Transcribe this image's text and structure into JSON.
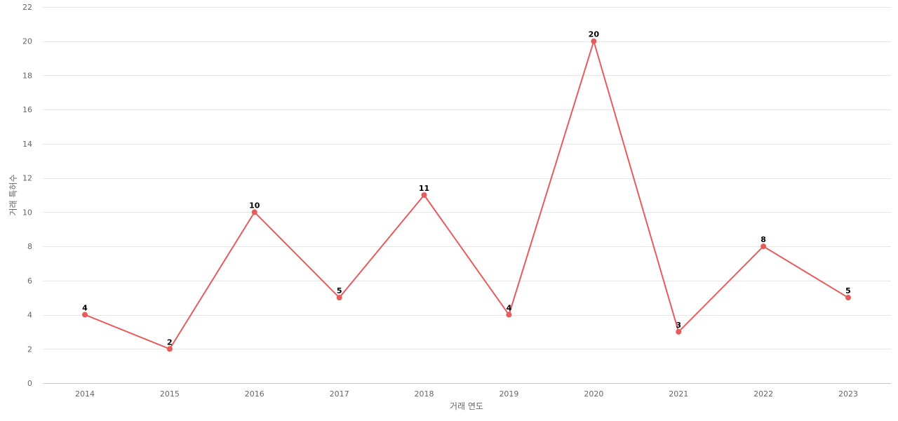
{
  "chart_data": {
    "type": "line",
    "title": "",
    "xlabel": "거래 연도",
    "ylabel": "거래 특허수",
    "x": [
      "2014",
      "2015",
      "2016",
      "2017",
      "2018",
      "2019",
      "2020",
      "2021",
      "2022",
      "2023"
    ],
    "series": [
      {
        "values": [
          4,
          2,
          10,
          5,
          11,
          4,
          20,
          3,
          8,
          5
        ],
        "color": "#e85b5b"
      }
    ],
    "ylim": [
      0,
      22
    ],
    "yticks": [
      0,
      2,
      4,
      6,
      8,
      10,
      12,
      14,
      16,
      18,
      20,
      22
    ],
    "grid": true,
    "data_labels": true,
    "legend": "none"
  }
}
